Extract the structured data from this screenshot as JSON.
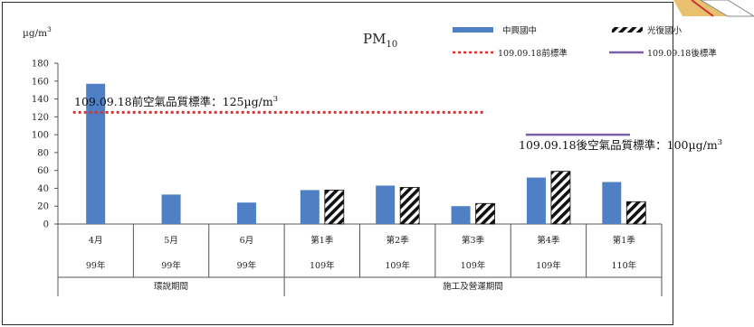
{
  "chart_data": {
    "type": "bar",
    "title": "PM",
    "title_sub": "10",
    "ylabel": "µg/m",
    "ylabel_sup": "3",
    "ylim": [
      0,
      180
    ],
    "yticks": [
      0,
      20,
      40,
      60,
      80,
      100,
      120,
      140,
      160,
      180
    ],
    "grid": false,
    "legend_position": "top-right",
    "categories": [
      {
        "line1": "4月",
        "line2": "99年"
      },
      {
        "line1": "5月",
        "line2": "99年"
      },
      {
        "line1": "6月",
        "line2": "99年"
      },
      {
        "line1": "第1季",
        "line2": "109年"
      },
      {
        "line1": "第2季",
        "line2": "109年"
      },
      {
        "line1": "第3季",
        "line2": "109年"
      },
      {
        "line1": "第4季",
        "line2": "109年"
      },
      {
        "line1": "第1季",
        "line2": "110年"
      }
    ],
    "groups": [
      {
        "label": "環說期間",
        "span": [
          0,
          2
        ]
      },
      {
        "label": "施工及營運期間",
        "span": [
          3,
          7
        ]
      }
    ],
    "series": [
      {
        "name": "中興國中",
        "color": "#4f7fc4",
        "pattern": "solid",
        "values": [
          157,
          33,
          24,
          38,
          43,
          20,
          52,
          47
        ]
      },
      {
        "name": "光復國小",
        "color": "#111111",
        "pattern": "hatch",
        "values": [
          null,
          null,
          null,
          38,
          41,
          23,
          59,
          25
        ]
      }
    ],
    "reference_lines": [
      {
        "name": "109.09.18前標準",
        "value": 125,
        "color": "#e03030",
        "style": "dotted",
        "from_category": 0,
        "to_category": 5,
        "label": "109.09.18前空氣品質標準：125µg/m",
        "label_sup": "3"
      },
      {
        "name": "109.09.18後標準",
        "value": 100,
        "color": "#7a5fa8",
        "style": "solid",
        "from_category": 6,
        "to_category": 7,
        "label": "109.09.18後空氣品質標準：100µg/m",
        "label_sup": "3"
      }
    ]
  }
}
